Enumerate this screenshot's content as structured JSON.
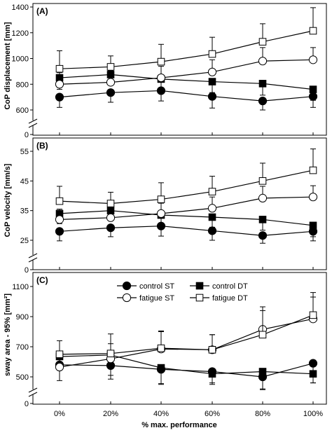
{
  "chart_data": [
    {
      "type": "line",
      "panel_label": "(A)",
      "ylabel": "CoP displacement [mm]",
      "ylim": [
        0,
        1400
      ],
      "yticks": [
        0,
        600,
        800,
        1000,
        1200,
        1400
      ],
      "axis_break": [
        0,
        600
      ],
      "x": [
        "0%",
        "20%",
        "40%",
        "60%",
        "80%",
        "100%"
      ],
      "series": [
        {
          "name": "control ST",
          "marker": "filled-circle",
          "values": [
            700,
            735,
            750,
            705,
            670,
            705
          ],
          "errors": [
            80,
            75,
            80,
            90,
            70,
            85
          ]
        },
        {
          "name": "control DT",
          "marker": "filled-square",
          "values": [
            850,
            875,
            840,
            820,
            805,
            760
          ],
          "errors": [
            90,
            80,
            85,
            85,
            90,
            85
          ]
        },
        {
          "name": "fatigue ST",
          "marker": "open-circle",
          "values": [
            800,
            815,
            850,
            895,
            980,
            990
          ],
          "errors": [
            90,
            90,
            90,
            95,
            105,
            95
          ]
        },
        {
          "name": "fatigue DT",
          "marker": "open-square",
          "values": [
            920,
            935,
            975,
            1035,
            1130,
            1215
          ],
          "errors": [
            140,
            85,
            135,
            130,
            140,
            180
          ]
        }
      ]
    },
    {
      "type": "line",
      "panel_label": "(B)",
      "ylabel": "CoP velocity [mm/s]",
      "ylim": [
        0,
        55
      ],
      "yticks": [
        0,
        25,
        35,
        45,
        55
      ],
      "axis_break": [
        0,
        25
      ],
      "x": [
        "0%",
        "20%",
        "40%",
        "60%",
        "80%",
        "100%"
      ],
      "series": [
        {
          "name": "control ST",
          "marker": "filled-circle",
          "values": [
            28,
            29.2,
            29.8,
            28.2,
            26.6,
            28
          ],
          "errors": [
            3.2,
            3,
            3.4,
            3.2,
            2.6,
            3.2
          ]
        },
        {
          "name": "control DT",
          "marker": "filled-square",
          "values": [
            34,
            35,
            33.5,
            32.8,
            32,
            30
          ],
          "errors": [
            3.4,
            3.2,
            3.2,
            3.4,
            3.6,
            3.8
          ]
        },
        {
          "name": "fatigue ST",
          "marker": "open-circle",
          "values": [
            32,
            32.6,
            34,
            35.8,
            39.2,
            39.6
          ],
          "errors": [
            3.5,
            3.5,
            3.5,
            3.8,
            4,
            3.8
          ]
        },
        {
          "name": "fatigue DT",
          "marker": "open-square",
          "values": [
            38.2,
            37.4,
            38.8,
            41.4,
            45,
            48.6
          ],
          "errors": [
            5,
            3.8,
            5.6,
            5.2,
            6,
            7.2
          ]
        }
      ]
    },
    {
      "type": "line",
      "panel_label": "(C)",
      "ylabel": "sway area - 95% [mm²]",
      "ylim": [
        0,
        1100
      ],
      "yticks": [
        0,
        500,
        700,
        900,
        1100
      ],
      "axis_break": [
        0,
        500
      ],
      "x": [
        "0%",
        "20%",
        "40%",
        "60%",
        "80%",
        "100%"
      ],
      "series": [
        {
          "name": "control ST",
          "marker": "filled-circle",
          "values": [
            580,
            575,
            550,
            535,
            500,
            590
          ],
          "errors": [
            105,
            90,
            95,
            85,
            85,
            130
          ]
        },
        {
          "name": "control DT",
          "marker": "filled-square",
          "values": [
            635,
            645,
            560,
            520,
            535,
            520
          ],
          "errors": [
            85,
            135,
            110,
            60,
            115,
            60
          ]
        },
        {
          "name": "fatigue ST",
          "marker": "open-circle",
          "values": [
            565,
            620,
            685,
            680,
            815,
            885
          ],
          "errors": [
            100,
            100,
            115,
            100,
            150,
            145
          ]
        },
        {
          "name": "fatigue DT",
          "marker": "open-square",
          "values": [
            650,
            655,
            690,
            680,
            780,
            910
          ],
          "errors": [
            90,
            130,
            115,
            100,
            160,
            150
          ]
        }
      ]
    }
  ],
  "xlabel": "% max. performance",
  "legend": {
    "placement": "top-center of panel C",
    "items": [
      "control ST",
      "control DT",
      "fatigue ST",
      "fatigue DT"
    ]
  }
}
